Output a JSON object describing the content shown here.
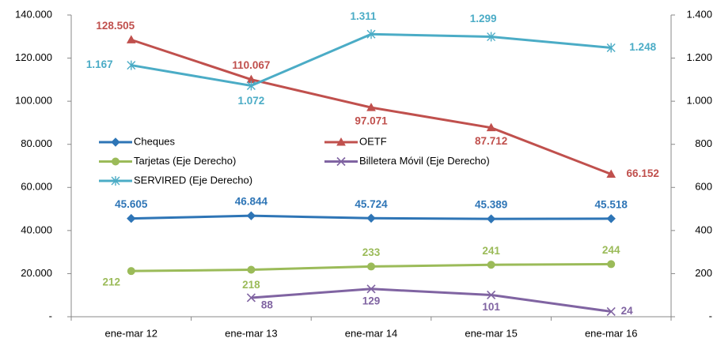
{
  "chart_data": {
    "type": "line",
    "categories": [
      "ene-mar 12",
      "ene-mar 13",
      "ene-mar 14",
      "ene-mar 15",
      "ene-mar 16"
    ],
    "ylim": [
      0,
      140000
    ],
    "yticks": [
      {
        "value": 0,
        "label": "-"
      },
      {
        "value": 20000,
        "label": "20.000"
      },
      {
        "value": 40000,
        "label": "40.000"
      },
      {
        "value": 60000,
        "label": "60.000"
      },
      {
        "value": 80000,
        "label": "80.000"
      },
      {
        "value": 100000,
        "label": "100.000"
      },
      {
        "value": 120000,
        "label": "120.000"
      },
      {
        "value": 140000,
        "label": "140.000"
      }
    ],
    "y2lim": [
      0,
      1400
    ],
    "y2ticks": [
      {
        "value": 0,
        "label": "-"
      },
      200,
      400,
      600,
      800,
      {
        "value": 1000,
        "label": "1.000"
      },
      {
        "value": 1200,
        "label": "1.200"
      },
      {
        "value": 1400,
        "label": "1.400"
      }
    ],
    "series": [
      {
        "name": "Cheques",
        "color": "#2e75b6",
        "marker": "diamond",
        "values": [
          45605,
          46844,
          45724,
          45389,
          45518
        ],
        "value_labels": [
          "45.605",
          "46.844",
          "45.724",
          "45.389",
          "45.518"
        ]
      },
      {
        "name": "OETF",
        "color": "#c0504d",
        "marker": "triangle",
        "values": [
          128505,
          110067,
          97071,
          87712,
          66152
        ],
        "value_labels": [
          "128.505",
          "110.067",
          "97.071",
          "87.712",
          "66.152"
        ]
      },
      {
        "name": "Tarjetas (Eje Derecho)",
        "color": "#9bbb59",
        "marker": "circle",
        "axis": "y2",
        "values": [
          212,
          218,
          233,
          241,
          244
        ],
        "value_labels": [
          "212",
          "218",
          "233",
          "241",
          "244"
        ]
      },
      {
        "name": "Billetera Móvil (Eje Derecho)",
        "color": "#8064a2",
        "marker": "x",
        "axis": "y2",
        "values": [
          null,
          88,
          129,
          101,
          24
        ],
        "value_labels": [
          null,
          "88",
          "129",
          "101",
          "24"
        ]
      },
      {
        "name": "SERVIRED (Eje Derecho)",
        "color": "#4bacc6",
        "marker": "star",
        "axis": "y2",
        "values": [
          1167,
          1072,
          1311,
          1299,
          1248
        ],
        "value_labels": [
          "1.167",
          "1.072",
          "1.311",
          "1.299",
          "1.248"
        ]
      }
    ]
  }
}
